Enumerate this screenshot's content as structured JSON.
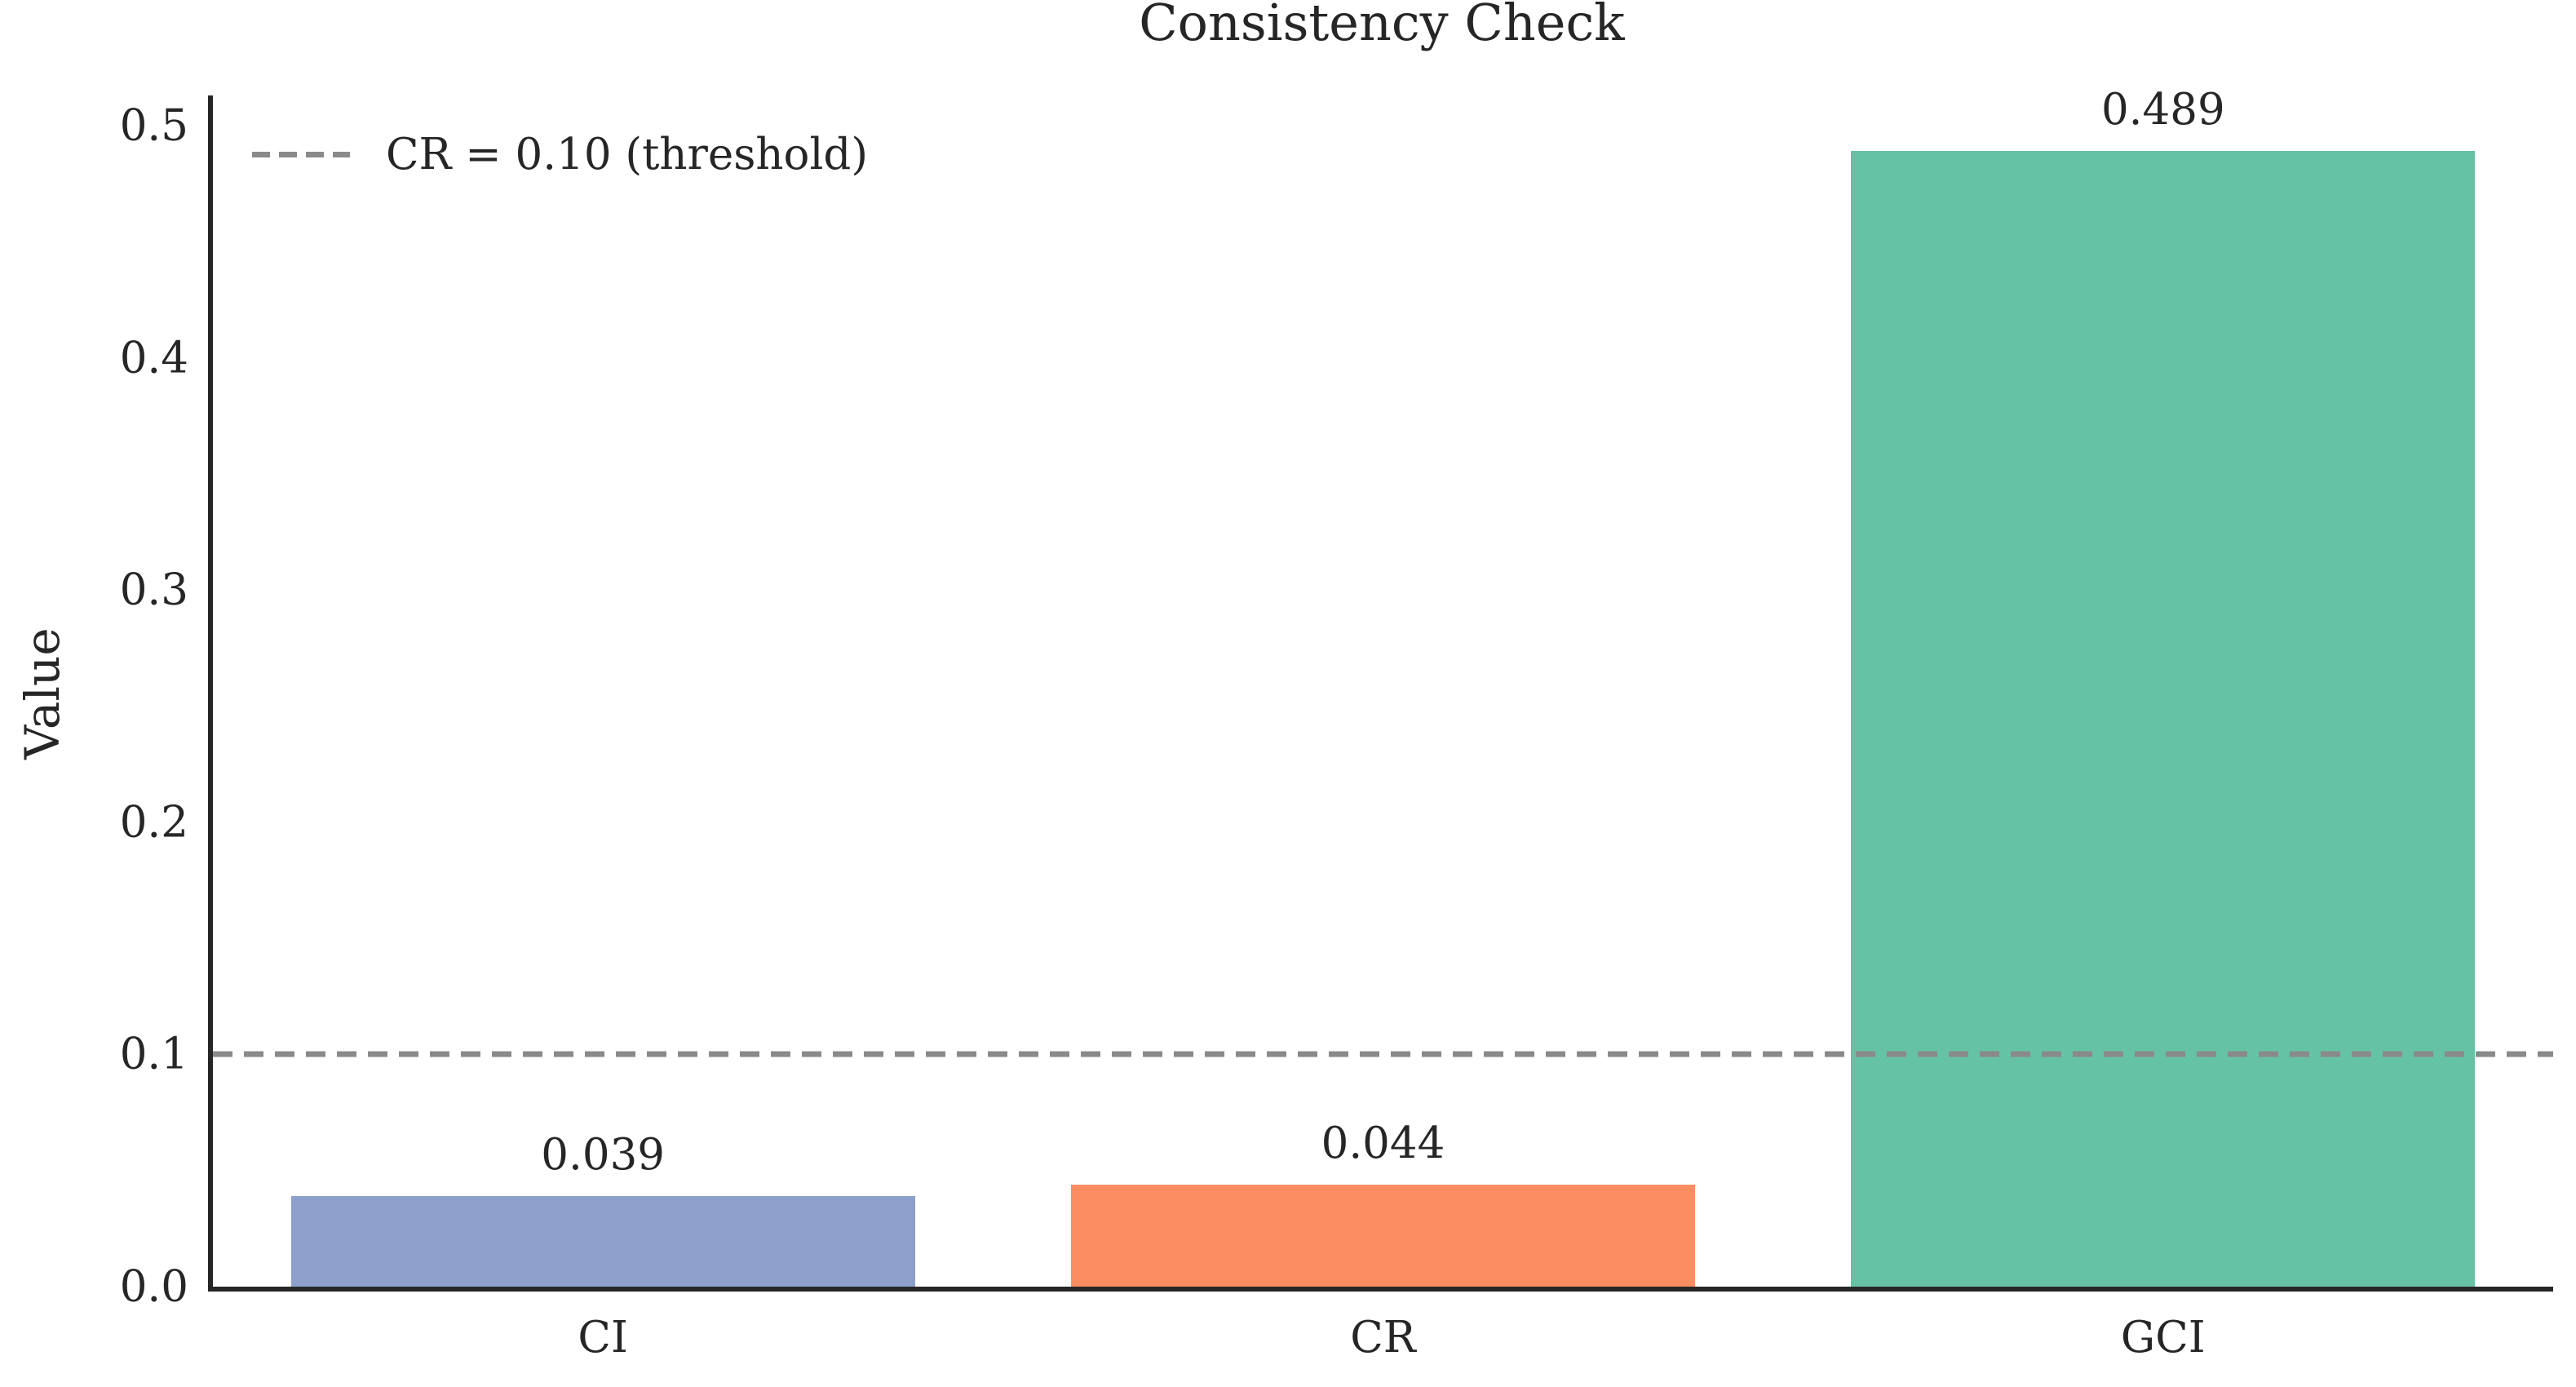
{
  "figure": {
    "background": "#ffffff",
    "text_color": "#262626",
    "axis_color": "#262626"
  },
  "chart_data": {
    "type": "bar",
    "title": "Consistency Check",
    "xlabel": "",
    "ylabel": "Value",
    "categories": [
      "CI",
      "CR",
      "GCI"
    ],
    "values": [
      0.039,
      0.044,
      0.489
    ],
    "bar_labels": [
      "0.039",
      "0.044",
      "0.489"
    ],
    "bar_colors": [
      "#8da0cb",
      "#fc8d62",
      "#66c2a5"
    ],
    "ylim": [
      0,
      0.513
    ],
    "yticks": [
      0.0,
      0.1,
      0.2,
      0.3,
      0.4,
      0.5
    ],
    "ytick_labels": [
      "0.0",
      "0.1",
      "0.2",
      "0.3",
      "0.4",
      "0.5"
    ],
    "grid": false,
    "bar_width_fraction": 0.8,
    "legend_position": "upper left",
    "threshold_line": {
      "value": 0.1,
      "label": "CR = 0.10 (threshold)",
      "color": "#8a8a8a",
      "style": "dashed"
    }
  }
}
